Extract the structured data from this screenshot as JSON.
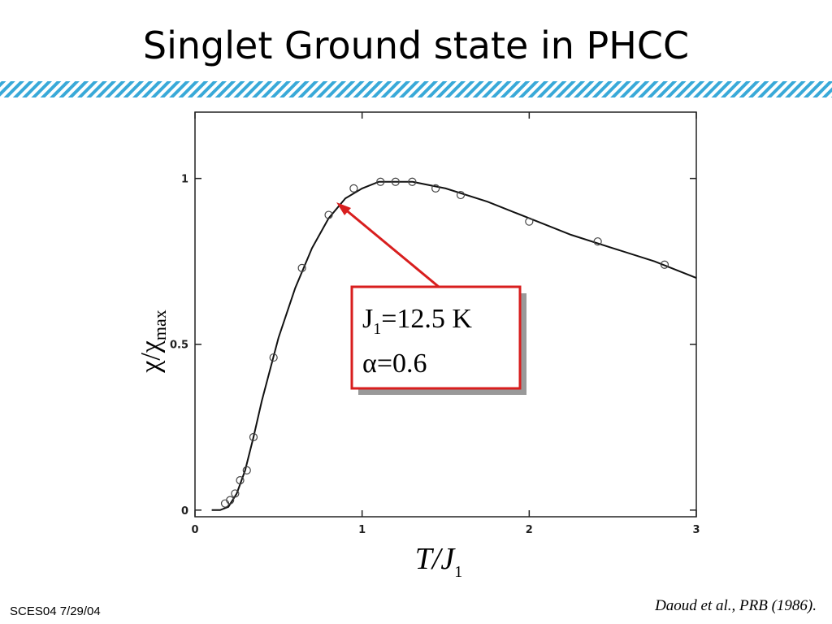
{
  "title": "Singlet Ground state in PHCC",
  "footer": "SCES04 7/29/04",
  "citation": "Daoud et al., PRB (1986).",
  "annotation": {
    "line1": {
      "text": "J",
      "sub": "1",
      "rest": "=12.5 K"
    },
    "line2": "α=0.6"
  },
  "chart_data": {
    "type": "scatter",
    "x_label": {
      "text": "T/J",
      "sub": "1"
    },
    "y_label": {
      "text": "χ/χ",
      "sub": "max"
    },
    "xlim": [
      0,
      3
    ],
    "ylim": [
      -0.02,
      1.2
    ],
    "xticks": [
      0,
      1,
      2,
      3
    ],
    "yticks": [
      0,
      0.5,
      1
    ],
    "points": {
      "color": "#444444",
      "x": [
        0.18,
        0.21,
        0.24,
        0.27,
        0.31,
        0.35,
        0.47,
        0.64,
        0.8,
        0.95,
        1.11,
        1.2,
        1.3,
        1.44,
        1.59,
        2.0,
        2.41,
        2.81
      ],
      "y": [
        0.02,
        0.03,
        0.05,
        0.09,
        0.12,
        0.22,
        0.46,
        0.73,
        0.89,
        0.97,
        0.99,
        0.99,
        0.99,
        0.97,
        0.95,
        0.87,
        0.81,
        0.74
      ]
    },
    "curve": {
      "color": "#111111",
      "x": [
        0.1,
        0.15,
        0.2,
        0.25,
        0.3,
        0.35,
        0.4,
        0.5,
        0.6,
        0.7,
        0.8,
        0.9,
        1.0,
        1.1,
        1.2,
        1.3,
        1.5,
        1.75,
        2.0,
        2.25,
        2.5,
        2.75,
        3.0
      ],
      "y": [
        0,
        0,
        0.01,
        0.05,
        0.12,
        0.22,
        0.33,
        0.52,
        0.67,
        0.79,
        0.88,
        0.94,
        0.97,
        0.99,
        0.99,
        0.99,
        0.97,
        0.93,
        0.88,
        0.83,
        0.79,
        0.75,
        0.7
      ]
    }
  }
}
